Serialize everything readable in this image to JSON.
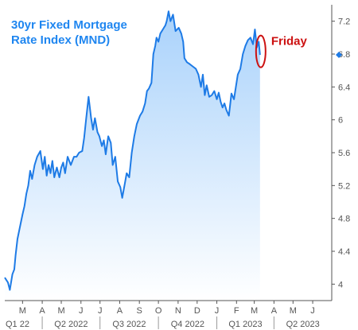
{
  "chart_data": {
    "type": "area",
    "title_lines": [
      "30yr Fixed Mortgage",
      "Rate Index (MND)"
    ],
    "ylim": [
      3.8,
      7.4
    ],
    "y_ticks": [
      "4",
      "4.4",
      "4.8",
      "5.2",
      "5.6",
      "6",
      "6.4",
      "6.8",
      "7.2"
    ],
    "xlim": [
      "2022-02-01",
      "2023-07-01"
    ],
    "month_ticks": [
      {
        "label": "M",
        "date": "2022-03-01"
      },
      {
        "label": "A",
        "date": "2022-04-01"
      },
      {
        "label": "M",
        "date": "2022-05-01"
      },
      {
        "label": "J",
        "date": "2022-06-01"
      },
      {
        "label": "J",
        "date": "2022-07-01"
      },
      {
        "label": "A",
        "date": "2022-08-01"
      },
      {
        "label": "S",
        "date": "2022-09-01"
      },
      {
        "label": "O",
        "date": "2022-10-01"
      },
      {
        "label": "N",
        "date": "2022-11-01"
      },
      {
        "label": "D",
        "date": "2022-12-01"
      },
      {
        "label": "J",
        "date": "2023-01-01"
      },
      {
        "label": "F",
        "date": "2023-02-01"
      },
      {
        "label": "M",
        "date": "2023-03-01"
      },
      {
        "label": "A",
        "date": "2023-04-01"
      },
      {
        "label": "M",
        "date": "2023-05-01"
      },
      {
        "label": "J",
        "date": "2023-06-01"
      }
    ],
    "quarter_labels": [
      {
        "label": "Q1 22",
        "start": "2022-02-01",
        "end": "2022-04-01"
      },
      {
        "label": "Q2 2022",
        "start": "2022-04-01",
        "end": "2022-07-01"
      },
      {
        "label": "Q3 2022",
        "start": "2022-07-01",
        "end": "2022-10-01"
      },
      {
        "label": "Q4 2022",
        "start": "2022-10-01",
        "end": "2023-01-01"
      },
      {
        "label": "Q1 2023",
        "start": "2023-01-01",
        "end": "2023-04-01"
      },
      {
        "label": "Q2 2023",
        "start": "2023-04-01",
        "end": "2023-07-01"
      }
    ],
    "quarter_dividers": [
      "2022-04-01",
      "2022-07-01",
      "2022-10-01",
      "2023-01-01",
      "2023-04-01"
    ],
    "series": [
      {
        "x": [
          "2022-02-01",
          "2022-02-06",
          "2022-02-09",
          "2022-02-13",
          "2022-02-16",
          "2022-02-18",
          "2022-02-21",
          "2022-02-25",
          "2022-03-01",
          "2022-03-04",
          "2022-03-07",
          "2022-03-10",
          "2022-03-13",
          "2022-03-16",
          "2022-03-20",
          "2022-03-24",
          "2022-03-29",
          "2022-04-02",
          "2022-04-05",
          "2022-04-08",
          "2022-04-11",
          "2022-04-14",
          "2022-04-17",
          "2022-04-20",
          "2022-04-24",
          "2022-04-28",
          "2022-05-01",
          "2022-05-04",
          "2022-05-07",
          "2022-05-11",
          "2022-05-16",
          "2022-05-21",
          "2022-05-25",
          "2022-05-29",
          "2022-06-03",
          "2022-06-06",
          "2022-06-09",
          "2022-06-13",
          "2022-06-15",
          "2022-06-17",
          "2022-06-20",
          "2022-06-23",
          "2022-06-27",
          "2022-06-30",
          "2022-07-04",
          "2022-07-07",
          "2022-07-10",
          "2022-07-14",
          "2022-07-18",
          "2022-07-21",
          "2022-07-25",
          "2022-07-29",
          "2022-08-02",
          "2022-08-05",
          "2022-08-09",
          "2022-08-12",
          "2022-08-16",
          "2022-08-20",
          "2022-08-24",
          "2022-08-28",
          "2022-09-02",
          "2022-09-06",
          "2022-09-10",
          "2022-09-13",
          "2022-09-16",
          "2022-09-20",
          "2022-09-23",
          "2022-09-26",
          "2022-09-28",
          "2022-10-01",
          "2022-10-04",
          "2022-10-08",
          "2022-10-12",
          "2022-10-14",
          "2022-10-17",
          "2022-10-20",
          "2022-10-24",
          "2022-10-28",
          "2022-11-02",
          "2022-11-06",
          "2022-11-09",
          "2022-11-11",
          "2022-11-15",
          "2022-11-19",
          "2022-11-24",
          "2022-11-29",
          "2022-12-03",
          "2022-12-07",
          "2022-12-10",
          "2022-12-13",
          "2022-12-16",
          "2022-12-20",
          "2022-12-24",
          "2022-12-28",
          "2023-01-01",
          "2023-01-04",
          "2023-01-07",
          "2023-01-10",
          "2023-01-13",
          "2023-01-16",
          "2023-01-20",
          "2023-01-24",
          "2023-01-28",
          "2023-01-31",
          "2023-02-03",
          "2023-02-07",
          "2023-02-11",
          "2023-02-15",
          "2023-02-19",
          "2023-02-23",
          "2023-02-27",
          "2023-03-02",
          "2023-03-05",
          "2023-03-08",
          "2023-03-10"
        ],
        "values": [
          4.08,
          4.02,
          3.93,
          4.12,
          4.18,
          4.35,
          4.55,
          4.7,
          4.85,
          4.95,
          5.1,
          5.2,
          5.38,
          5.28,
          5.45,
          5.55,
          5.62,
          5.4,
          5.55,
          5.32,
          5.45,
          5.35,
          5.5,
          5.3,
          5.42,
          5.3,
          5.42,
          5.48,
          5.35,
          5.55,
          5.45,
          5.55,
          5.55,
          5.6,
          5.62,
          5.78,
          6.0,
          6.28,
          6.15,
          6.02,
          5.88,
          6.02,
          5.85,
          5.8,
          5.68,
          5.75,
          5.58,
          5.8,
          5.72,
          5.45,
          5.55,
          5.25,
          5.18,
          5.05,
          5.22,
          5.35,
          5.3,
          5.6,
          5.8,
          5.95,
          6.05,
          6.1,
          6.2,
          6.35,
          6.38,
          6.45,
          6.8,
          6.9,
          7.0,
          6.95,
          7.05,
          7.1,
          7.15,
          7.2,
          7.32,
          7.2,
          7.28,
          7.08,
          7.12,
          7.05,
          6.95,
          6.75,
          6.7,
          6.68,
          6.65,
          6.62,
          6.55,
          6.4,
          6.55,
          6.3,
          6.42,
          6.28,
          6.3,
          6.35,
          6.25,
          6.33,
          6.22,
          6.15,
          6.2,
          6.12,
          6.05,
          6.32,
          6.25,
          6.4,
          6.55,
          6.62,
          6.8,
          6.9,
          6.97,
          7.0,
          6.92,
          7.1,
          6.88,
          6.95,
          6.79
        ]
      }
    ],
    "annotation": {
      "text": "Friday",
      "date": "2023-03-10",
      "value": 6.9
    },
    "current_value": 6.79,
    "grid": false,
    "colors": {
      "line": "#1e7be6",
      "fill_top": "#a9d2fb",
      "fill_bottom": "#ffffff",
      "title": "#1f86f0",
      "annotation": "#cc1111",
      "axis": "#555555"
    }
  }
}
